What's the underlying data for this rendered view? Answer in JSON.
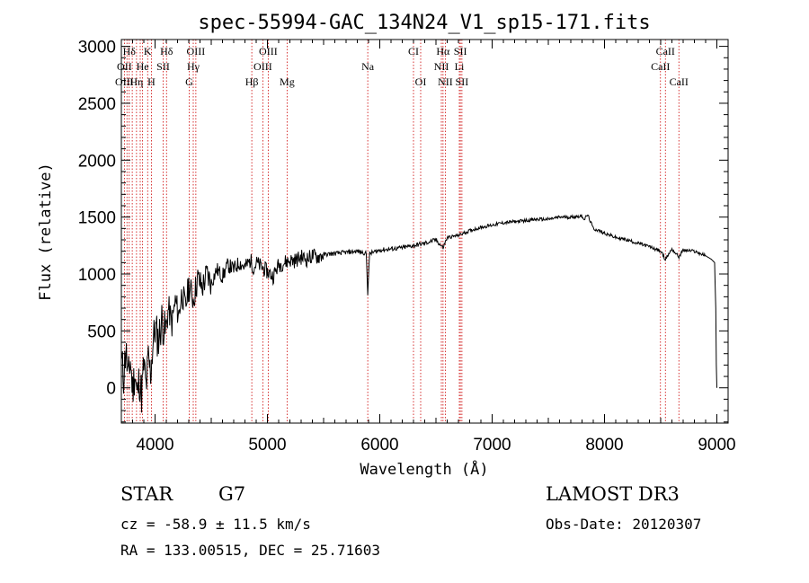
{
  "chart_data": {
    "type": "line",
    "title": "spec-55994-GAC_134N24_V1_sp15-171.fits",
    "xlabel": "Wavelength (Å)",
    "ylabel": "Flux (relative)",
    "xlim": [
      3700,
      9100
    ],
    "ylim": [
      -310,
      3060
    ],
    "xticks": [
      4000,
      5000,
      6000,
      7000,
      8000,
      9000
    ],
    "xtick_labels": [
      "4000",
      "5000",
      "6000",
      "7000",
      "8000",
      "9000"
    ],
    "yticks": [
      0,
      500,
      1000,
      1500,
      2000,
      2500,
      3000
    ],
    "ytick_labels": [
      "0",
      "500",
      "1000",
      "1500",
      "2000",
      "2500",
      "3000"
    ],
    "series": [
      {
        "name": "flux",
        "x": [
          3705,
          3720,
          3740,
          3760,
          3780,
          3800,
          3820,
          3840,
          3860,
          3880,
          3900,
          3920,
          3940,
          3960,
          3980,
          4000,
          4030,
          4060,
          4090,
          4120,
          4150,
          4180,
          4210,
          4240,
          4270,
          4300,
          4340,
          4380,
          4420,
          4460,
          4500,
          4550,
          4600,
          4650,
          4700,
          4750,
          4800,
          4850,
          4880,
          4900,
          4950,
          5000,
          5050,
          5100,
          5150,
          5200,
          5250,
          5300,
          5350,
          5400,
          5450,
          5500,
          5600,
          5700,
          5800,
          5880,
          5893,
          5910,
          6000,
          6100,
          6200,
          6300,
          6400,
          6500,
          6563,
          6600,
          6700,
          6800,
          6900,
          7000,
          7100,
          7200,
          7300,
          7400,
          7500,
          7600,
          7700,
          7800,
          7820,
          7850,
          7900,
          8000,
          8100,
          8200,
          8300,
          8400,
          8500,
          8542,
          8600,
          8662,
          8700,
          8800,
          8900,
          8950,
          8980,
          8990,
          8995,
          9000
        ],
        "y": [
          200,
          100,
          350,
          60,
          250,
          -20,
          150,
          -80,
          80,
          -60,
          200,
          0,
          250,
          120,
          380,
          520,
          420,
          600,
          480,
          700,
          560,
          760,
          640,
          840,
          700,
          900,
          780,
          960,
          880,
          1000,
          920,
          1040,
          980,
          1080,
          1040,
          1100,
          1060,
          1120,
          1050,
          1100,
          1060,
          1020,
          980,
          1080,
          1100,
          1120,
          1120,
          1150,
          1130,
          1160,
          1150,
          1170,
          1180,
          1190,
          1200,
          1180,
          830,
          1180,
          1210,
          1220,
          1230,
          1250,
          1270,
          1300,
          1230,
          1320,
          1340,
          1380,
          1410,
          1430,
          1450,
          1460,
          1470,
          1480,
          1480,
          1500,
          1500,
          1510,
          1480,
          1520,
          1400,
          1360,
          1320,
          1300,
          1270,
          1240,
          1200,
          1130,
          1220,
          1150,
          1210,
          1200,
          1160,
          1130,
          1100,
          700,
          200,
          0
        ]
      }
    ],
    "spectral_lines": [
      {
        "label": "Hδ",
        "x": 3770,
        "row": 0
      },
      {
        "label": "K",
        "x": 3934,
        "row": 0
      },
      {
        "label": "Hδ",
        "x": 4102,
        "row": 0
      },
      {
        "label": "OIII",
        "x": 4363,
        "row": 0
      },
      {
        "label": "OIII",
        "x": 5007,
        "row": 0
      },
      {
        "label": "CI",
        "x": 6300,
        "row": 0
      },
      {
        "label": "Hα",
        "x": 6563,
        "row": 0
      },
      {
        "label": "SII",
        "x": 6717,
        "row": 0
      },
      {
        "label": "CaII",
        "x": 8542,
        "row": 0
      },
      {
        "label": "OII",
        "x": 3727,
        "row": 1
      },
      {
        "label": "He",
        "x": 3889,
        "row": 1
      },
      {
        "label": "SII",
        "x": 4072,
        "row": 1
      },
      {
        "label": "Hγ",
        "x": 4340,
        "row": 1
      },
      {
        "label": "OIII",
        "x": 4959,
        "row": 1
      },
      {
        "label": "Na",
        "x": 5893,
        "row": 1
      },
      {
        "label": "NII",
        "x": 6548,
        "row": 1
      },
      {
        "label": "Li",
        "x": 6708,
        "row": 1
      },
      {
        "label": "CaII",
        "x": 8498,
        "row": 1
      },
      {
        "label": "OIII",
        "x": 3727,
        "row": 2
      },
      {
        "label": "Hη",
        "x": 3835,
        "row": 2
      },
      {
        "label": "H",
        "x": 3968,
        "row": 2
      },
      {
        "label": "G",
        "x": 4304,
        "row": 2
      },
      {
        "label": "Hβ",
        "x": 4861,
        "row": 2
      },
      {
        "label": "Mg",
        "x": 5175,
        "row": 2
      },
      {
        "label": "OI",
        "x": 6364,
        "row": 2
      },
      {
        "label": "NII",
        "x": 6583,
        "row": 2
      },
      {
        "label": "SII",
        "x": 6731,
        "row": 2
      },
      {
        "label": "CaII",
        "x": 8662,
        "row": 2
      }
    ],
    "line_marker_wavelengths": [
      3727,
      3750,
      3770,
      3797,
      3835,
      3868,
      3889,
      3934,
      3968,
      4072,
      4102,
      4304,
      4340,
      4363,
      4861,
      4959,
      5007,
      5175,
      5893,
      6300,
      6364,
      6548,
      6563,
      6583,
      6708,
      6717,
      6731,
      8498,
      8542,
      8662
    ],
    "colors": {
      "spectrum": "#000000",
      "line_markers": "#cc0000",
      "axes": "#000000"
    }
  },
  "info": {
    "object_class": "STAR",
    "subclass": "G7",
    "survey": "LAMOST DR3",
    "redshift": "cz = -58.9 ± 11.5 km/s",
    "obs_date": "Obs-Date: 20120307",
    "coords": "RA = 133.00515, DEC =  25.71603"
  }
}
